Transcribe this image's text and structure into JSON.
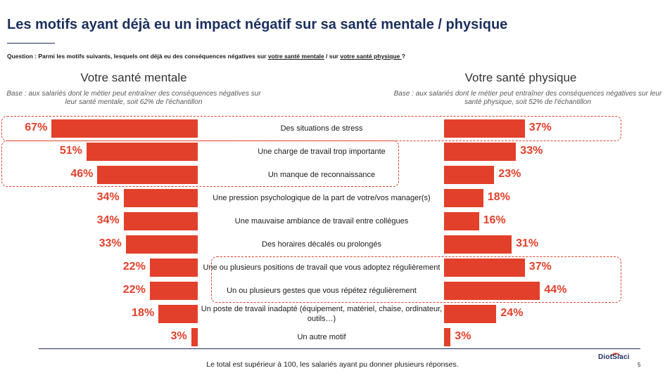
{
  "title": "Les motifs ayant déjà eu un impact négatif sur sa santé mentale / physique",
  "question": {
    "prefix": "Question : Parmi les motifs suivants, lesquels ont déjà eu des conséquences négatives sur ",
    "underline1": "votre santé mentale",
    "middle": " / sur ",
    "underline2": "votre santé physique ",
    "suffix": " ?"
  },
  "panels": {
    "left_title": "Votre santé mentale",
    "left_base": "Base : aux salariés dont le métier peut entraîner des conséquences négatives sur leur santé mentale, soit 62% de l'échantillon",
    "right_title": "Votre santé physique",
    "right_base": "Base : aux salariés dont le métier peut entraîner des conséquences négatives sur leur santé physique, soit 52% de l'échantillon"
  },
  "chart_data": {
    "type": "bar",
    "categories": [
      "Des situations de stress",
      "Une charge de travail trop importante",
      "Un manque de reconnaissance",
      "Une pression psychologique de la part de votre/vos manager(s)",
      "Une mauvaise ambiance de travail entre collègues",
      "Des horaires décalés ou prolongés",
      "Une ou plusieurs positions de travail que vous adoptez régulièrement",
      "Un ou plusieurs gestes que vous répétez régulièrement",
      "Un poste de travail inadapté (équipement, matériel, chaise, ordinateur, outils…)",
      "Un autre motif"
    ],
    "series": [
      {
        "name": "Votre santé mentale",
        "values": [
          67,
          51,
          46,
          34,
          34,
          33,
          22,
          22,
          18,
          3
        ],
        "labels": [
          "67%",
          "51%",
          "46%",
          "34%",
          "34%",
          "33%",
          "22%",
          "22%",
          "18%",
          "3%"
        ]
      },
      {
        "name": "Votre santé physique",
        "values": [
          37,
          33,
          23,
          18,
          16,
          31,
          37,
          44,
          24,
          3
        ],
        "labels": [
          "37%",
          "33%",
          "23%",
          "18%",
          "16%",
          "31%",
          "37%",
          "44%",
          "24%",
          "3%"
        ]
      }
    ],
    "bar_color": "#e2402a"
  },
  "footnote": "Le total est supérieur à 100, les salariés ayant pu donner plusieurs réponses.",
  "logo": "DiotSiaci",
  "page_number": "5",
  "colors": {
    "title": "#1b2f5e",
    "accent": "#e2402a"
  }
}
